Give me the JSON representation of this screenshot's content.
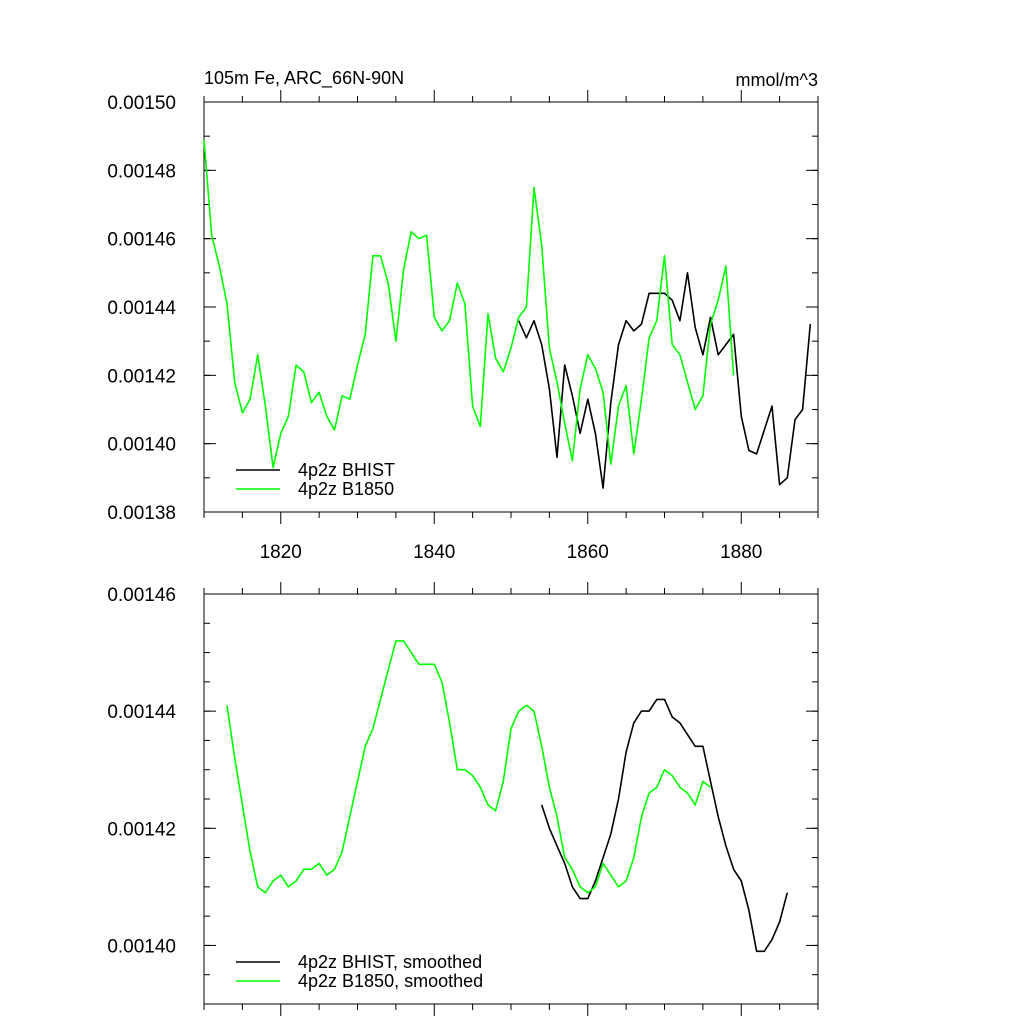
{
  "chart_data": [
    {
      "type": "line",
      "title": "105m Fe, ARC_66N-90N",
      "units": "mmol/m^3",
      "xlim": [
        1810,
        1890
      ],
      "ylim": [
        0.00138,
        0.0015
      ],
      "x_ticks": [
        1820,
        1840,
        1860,
        1880
      ],
      "y_ticks": [
        "0.00138",
        "0.00140",
        "0.00142",
        "0.00144",
        "0.00146",
        "0.00148",
        "0.00150"
      ],
      "legend_position": "bottom-left",
      "series": [
        {
          "name": "4p2z BHIST",
          "color": "#000000",
          "x": [
            1851,
            1852,
            1853,
            1854,
            1855,
            1856,
            1857,
            1858,
            1859,
            1860,
            1861,
            1862,
            1863,
            1864,
            1865,
            1866,
            1867,
            1868,
            1869,
            1870,
            1871,
            1872,
            1873,
            1874,
            1875,
            1876,
            1877,
            1878,
            1879,
            1880,
            1881,
            1882,
            1883,
            1884,
            1885,
            1886,
            1887,
            1888,
            1889
          ],
          "y": [
            0.001436,
            0.001431,
            0.001436,
            0.001429,
            0.001416,
            0.001396,
            0.001423,
            0.001414,
            0.001403,
            0.001413,
            0.001403,
            0.001387,
            0.001412,
            0.001429,
            0.001436,
            0.001433,
            0.001435,
            0.001444,
            0.001444,
            0.001444,
            0.001442,
            0.001436,
            0.00145,
            0.001434,
            0.001426,
            0.001437,
            0.001426,
            0.001429,
            0.001432,
            0.001408,
            0.001398,
            0.001397,
            0.001404,
            0.001411,
            0.001388,
            0.00139,
            0.001407,
            0.00141,
            0.001435
          ]
        },
        {
          "name": "4p2z B1850",
          "color": "#00ff00",
          "x": [
            1810,
            1811,
            1812,
            1813,
            1814,
            1815,
            1816,
            1817,
            1818,
            1819,
            1820,
            1821,
            1822,
            1823,
            1824,
            1825,
            1826,
            1827,
            1828,
            1829,
            1830,
            1831,
            1832,
            1833,
            1834,
            1835,
            1836,
            1837,
            1838,
            1839,
            1840,
            1841,
            1842,
            1843,
            1844,
            1845,
            1846,
            1847,
            1848,
            1849,
            1850,
            1851,
            1852,
            1853,
            1854,
            1855,
            1856,
            1857,
            1858,
            1859,
            1860,
            1861,
            1862,
            1863,
            1864,
            1865,
            1866,
            1867,
            1868,
            1869,
            1870,
            1871,
            1872,
            1873,
            1874,
            1875,
            1876,
            1877,
            1878,
            1879
          ],
          "y": [
            0.001489,
            0.001461,
            0.001452,
            0.001441,
            0.001418,
            0.001409,
            0.001413,
            0.001426,
            0.001411,
            0.001393,
            0.001403,
            0.001408,
            0.001423,
            0.001421,
            0.001412,
            0.001415,
            0.001408,
            0.001404,
            0.001414,
            0.001413,
            0.001423,
            0.001432,
            0.001455,
            0.001455,
            0.001447,
            0.00143,
            0.001451,
            0.001462,
            0.00146,
            0.001461,
            0.001437,
            0.001433,
            0.001436,
            0.001447,
            0.001441,
            0.001411,
            0.001405,
            0.001438,
            0.001425,
            0.001421,
            0.001428,
            0.001437,
            0.00144,
            0.001475,
            0.001458,
            0.001428,
            0.001418,
            0.001406,
            0.001395,
            0.001416,
            0.001426,
            0.001422,
            0.001415,
            0.001394,
            0.001411,
            0.001417,
            0.001397,
            0.001413,
            0.001431,
            0.001436,
            0.001455,
            0.001429,
            0.001426,
            0.001418,
            0.00141,
            0.001414,
            0.001435,
            0.001442,
            0.001452,
            0.00142
          ]
        }
      ]
    },
    {
      "type": "line",
      "xlim": [
        1810,
        1890
      ],
      "ylim": [
        0.00139,
        0.00146
      ],
      "y_ticks": [
        "0.00140",
        "0.00142",
        "0.00144",
        "0.00146"
      ],
      "legend_position": "bottom-left",
      "series": [
        {
          "name": "4p2z BHIST, smoothed",
          "color": "#000000",
          "x": [
            1854,
            1855,
            1856,
            1857,
            1858,
            1859,
            1860,
            1861,
            1862,
            1863,
            1864,
            1865,
            1866,
            1867,
            1868,
            1869,
            1870,
            1871,
            1872,
            1873,
            1874,
            1875,
            1876,
            1877,
            1878,
            1879,
            1880,
            1881,
            1882,
            1883,
            1884,
            1885,
            1886
          ],
          "y": [
            0.001424,
            0.00142,
            0.001417,
            0.001414,
            0.00141,
            0.001408,
            0.001408,
            0.001411,
            0.001415,
            0.001419,
            0.001425,
            0.001433,
            0.001438,
            0.00144,
            0.00144,
            0.001442,
            0.001442,
            0.001439,
            0.001438,
            0.001436,
            0.001434,
            0.001434,
            0.001428,
            0.001422,
            0.001417,
            0.001413,
            0.001411,
            0.001406,
            0.001399,
            0.001399,
            0.001401,
            0.001404,
            0.001409
          ]
        },
        {
          "name": "4p2z B1850, smoothed",
          "color": "#00ff00",
          "x": [
            1813,
            1814,
            1815,
            1816,
            1817,
            1818,
            1819,
            1820,
            1821,
            1822,
            1823,
            1824,
            1825,
            1826,
            1827,
            1828,
            1829,
            1830,
            1831,
            1832,
            1833,
            1834,
            1835,
            1836,
            1837,
            1838,
            1839,
            1840,
            1841,
            1842,
            1843,
            1844,
            1845,
            1846,
            1847,
            1848,
            1849,
            1850,
            1851,
            1852,
            1853,
            1854,
            1855,
            1856,
            1857,
            1858,
            1859,
            1860,
            1861,
            1862,
            1863,
            1864,
            1865,
            1866,
            1867,
            1868,
            1869,
            1870,
            1871,
            1872,
            1873,
            1874,
            1875,
            1876
          ],
          "y": [
            0.001441,
            0.001432,
            0.001424,
            0.001416,
            0.00141,
            0.001409,
            0.001411,
            0.001412,
            0.00141,
            0.001411,
            0.001413,
            0.001413,
            0.001414,
            0.001412,
            0.001413,
            0.001416,
            0.001422,
            0.001428,
            0.001434,
            0.001437,
            0.001442,
            0.001447,
            0.001452,
            0.001452,
            0.00145,
            0.001448,
            0.001448,
            0.001448,
            0.001445,
            0.001438,
            0.00143,
            0.00143,
            0.001429,
            0.001427,
            0.001424,
            0.001423,
            0.001428,
            0.001437,
            0.00144,
            0.001441,
            0.00144,
            0.001434,
            0.001427,
            0.001422,
            0.001415,
            0.001413,
            0.00141,
            0.001409,
            0.00141,
            0.001414,
            0.001412,
            0.00141,
            0.001411,
            0.001415,
            0.001422,
            0.001426,
            0.001427,
            0.00143,
            0.001429,
            0.001427,
            0.001426,
            0.001424,
            0.001428,
            0.001427
          ]
        }
      ]
    }
  ]
}
